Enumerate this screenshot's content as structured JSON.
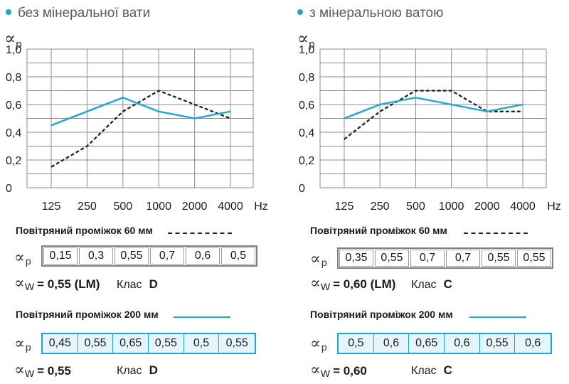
{
  "alpha_symbol": "∝",
  "chart_data": [
    {
      "type": "line",
      "title": "без мінеральної вати",
      "ylabel": "∝p",
      "xlabel": "Hz",
      "categories": [
        "125",
        "250",
        "500",
        "1000",
        "2000",
        "4000"
      ],
      "y_tick_labels": [
        "0",
        "0,2",
        "0,4",
        "0,6",
        "0,8",
        "1,0"
      ],
      "ylim": [
        0,
        1.0
      ],
      "grid": true,
      "series": [
        {
          "name": "Повітряний проміжок 60 мм",
          "style": "dashed",
          "color": "#1a1a1a",
          "values": [
            0.15,
            0.3,
            0.55,
            0.7,
            0.6,
            0.5
          ]
        },
        {
          "name": "Повітряний проміжок 200 мм",
          "style": "solid",
          "color": "#1ba6d8",
          "values": [
            0.45,
            0.55,
            0.65,
            0.55,
            0.5,
            0.55
          ]
        }
      ]
    },
    {
      "type": "line",
      "title": "з мінеральною ватою",
      "ylabel": "∝p",
      "xlabel": "Hz",
      "categories": [
        "125",
        "250",
        "500",
        "1000",
        "2000",
        "4000"
      ],
      "y_tick_labels": [
        "0",
        "0,2",
        "0,4",
        "0,6",
        "0,8",
        "1,0"
      ],
      "ylim": [
        0,
        1.0
      ],
      "grid": true,
      "series": [
        {
          "name": "Повітряний проміжок 60 мм",
          "style": "dashed",
          "color": "#1a1a1a",
          "values": [
            0.35,
            0.55,
            0.7,
            0.7,
            0.55,
            0.55
          ]
        },
        {
          "name": "Повітряний проміжок 200 мм",
          "style": "solid",
          "color": "#1ba6d8",
          "values": [
            0.5,
            0.6,
            0.65,
            0.6,
            0.55,
            0.6
          ]
        }
      ]
    }
  ],
  "panels": [
    {
      "title": "без мінеральної вати",
      "air60": {
        "label": "Повітряний проміжок 60 мм",
        "row_sub": "p",
        "cells": [
          "0,15",
          "0,3",
          "0,55",
          "0,7",
          "0,6",
          "0,5"
        ],
        "aw_sub": "W",
        "aw_value": "= 0,55 (LM)",
        "klas_label": "Клас",
        "klas_value": "D"
      },
      "air200": {
        "label": "Повітряний проміжок 200 мм",
        "row_sub": "p",
        "cells": [
          "0,45",
          "0,55",
          "0,65",
          "0,55",
          "0,5",
          "0,55"
        ],
        "aw_sub": "W",
        "aw_value": "= 0,55",
        "klas_label": "Клас",
        "klas_value": "D"
      }
    },
    {
      "title": "з мінеральною ватою",
      "air60": {
        "label": "Повітряний проміжок 60 мм",
        "row_sub": "p",
        "cells": [
          "0,35",
          "0,55",
          "0,7",
          "0,7",
          "0,55",
          "0,55"
        ],
        "aw_sub": "W",
        "aw_value": "= 0,60 (LM)",
        "klas_label": "Клас",
        "klas_value": "C"
      },
      "air200": {
        "label": "Повітряний проміжок 200 мм",
        "row_sub": "p",
        "cells": [
          "0,5",
          "0,6",
          "0,65",
          "0,6",
          "0,55",
          "0,6"
        ],
        "aw_sub": "W",
        "aw_value": "= 0,60",
        "klas_label": "Клас",
        "klas_value": "C"
      }
    }
  ]
}
